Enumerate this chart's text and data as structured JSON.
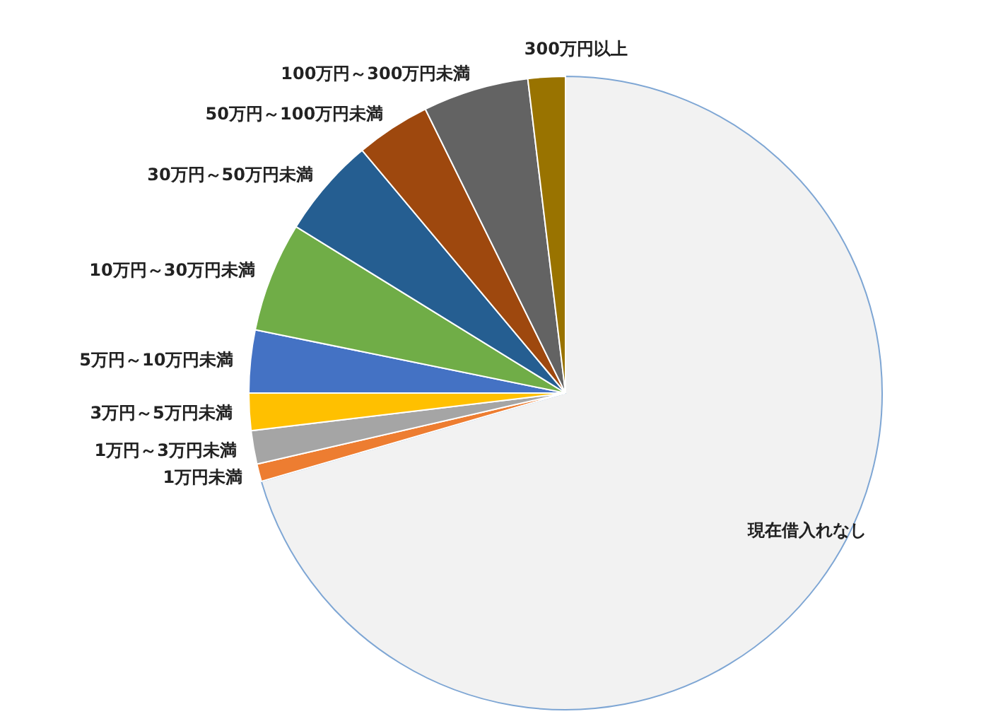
{
  "chart_data": {
    "type": "pie",
    "categories": [
      "現在借入れなし",
      "1万円未満",
      "1万円～3万円未満",
      "3万円～5万円未満",
      "5万円～10万円未満",
      "10万円～30万円未満",
      "30万円～50万円未満",
      "50万円～100万円未満",
      "100万円～300万円未満",
      "300万円以上"
    ],
    "values": [
      70.5,
      0.9,
      1.7,
      1.9,
      3.2,
      5.6,
      5.1,
      3.8,
      5.4,
      1.9
    ],
    "colors": [
      "#f2f2f2",
      "#ed7d31",
      "#a5a5a5",
      "#ffc000",
      "#4472c4",
      "#70ad47",
      "#255e91",
      "#9e480e",
      "#636363",
      "#997300"
    ]
  }
}
